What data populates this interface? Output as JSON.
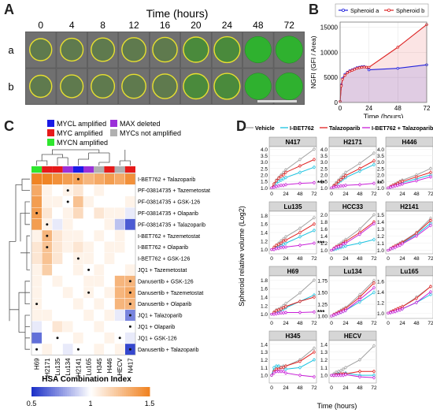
{
  "panel_labels": [
    "A",
    "B",
    "C",
    "D"
  ],
  "panelA": {
    "title": "Time (hours)",
    "times": [
      "0",
      "4",
      "8",
      "12",
      "16",
      "20",
      "24",
      "48",
      "72"
    ],
    "rows": [
      "a",
      "b"
    ]
  },
  "chart_data": [
    {
      "type": "line",
      "panel": "B",
      "xlabel": "Time (hours)",
      "ylabel": "NGFI (GFI / Area)",
      "xlim": [
        0,
        72
      ],
      "ylim": [
        0,
        16000
      ],
      "xticks": [
        "0",
        "24",
        "48",
        "72"
      ],
      "yticks": [
        "0",
        "5000",
        "10000",
        "15000"
      ],
      "legend": "top",
      "series": [
        {
          "name": "Spheroid a",
          "color": "#2222dd",
          "x": [
            0,
            1,
            2,
            4,
            6,
            8,
            10,
            12,
            14,
            16,
            18,
            20,
            22,
            24,
            48,
            72
          ],
          "y": [
            200,
            3500,
            4800,
            5600,
            6000,
            6300,
            6500,
            6700,
            6900,
            7000,
            7100,
            7150,
            7000,
            6500,
            6800,
            7500
          ]
        },
        {
          "name": "Spheroid b",
          "color": "#dd2222",
          "x": [
            0,
            1,
            2,
            4,
            6,
            8,
            10,
            12,
            14,
            16,
            18,
            20,
            22,
            24,
            48,
            72
          ],
          "y": [
            200,
            3300,
            4600,
            5400,
            5900,
            6200,
            6400,
            6600,
            6800,
            6900,
            7000,
            7050,
            7000,
            7000,
            11000,
            15500
          ]
        }
      ]
    },
    {
      "type": "heatmap",
      "panel": "C",
      "title": "HSA Combination Index",
      "scale_ticks": [
        "0.5",
        "1",
        "1.5"
      ],
      "legend_items": [
        {
          "label": "MYCL amplified",
          "color": "#1a1ae6"
        },
        {
          "label": "MYC amplified",
          "color": "#e61a1a"
        },
        {
          "label": "MYCN amplified",
          "color": "#2ee62e"
        },
        {
          "label": "MAX deleted",
          "color": "#9b30d9"
        },
        {
          "label": "MYCs not amplified",
          "color": "#b0b0b0"
        }
      ],
      "columns": [
        "H69",
        "H2171",
        "Lu135",
        "Lu134",
        "H2141",
        "Lu165",
        "H345",
        "H446",
        "HECV",
        "N417"
      ],
      "column_colors": [
        "#2ee62e",
        "#e61a1a",
        "#e61a1a",
        "#9b30d9",
        "#1a1ae6",
        "#9b30d9",
        "#b0b0b0",
        "#e61a1a",
        "#b0b0b0",
        "#e61a1a"
      ],
      "rows": [
        "I-BET762 + Talazoparib",
        "PF-03814735 + Tazemetostat",
        "PF-03814735 + GSK-126",
        "PF-03814735 + Olaparib",
        "PF-03814735 + Talazoparib",
        "I-BET762 + Tazemetostat",
        "I-BET762 + Olaparib",
        "I-BET762 + GSK-126",
        "JQ1 + Tazemetostat",
        "Danusertib + GSK-126",
        "Danusertib + Tazemetostat",
        "Danusertib + Olaparib",
        "JQ1 + Talazoparib",
        "JQ1 + Olaparib",
        "JQ1 + GSK-126",
        "Danusertib + Talazoparib"
      ],
      "values": [
        [
          1.5,
          1.5,
          1.45,
          1.4,
          1.38,
          1.3,
          1.35,
          1.4,
          1.35,
          1.45
        ],
        [
          1.35,
          1.05,
          1.0,
          1.05,
          1.1,
          1.0,
          1.05,
          1.0,
          1.0,
          1.0
        ],
        [
          1.4,
          1.05,
          1.05,
          1.0,
          1.25,
          1.05,
          1.0,
          1.0,
          1.0,
          1.05
        ],
        [
          1.4,
          1.1,
          1.0,
          1.05,
          1.15,
          1.0,
          1.1,
          1.05,
          1.05,
          0.95
        ],
        [
          1.4,
          1.05,
          0.95,
          1.05,
          1.0,
          1.0,
          1.0,
          1.05,
          0.85,
          0.6
        ],
        [
          1.05,
          1.3,
          1.1,
          1.05,
          1.05,
          1.0,
          1.05,
          1.0,
          1.05,
          1.0
        ],
        [
          1.1,
          1.25,
          1.1,
          1.05,
          1.1,
          1.05,
          1.0,
          1.05,
          1.05,
          1.0
        ],
        [
          1.1,
          1.25,
          1.1,
          1.0,
          1.05,
          1.05,
          1.0,
          1.05,
          1.0,
          1.0
        ],
        [
          1.05,
          1.2,
          1.0,
          1.0,
          1.05,
          1.0,
          1.05,
          1.0,
          1.0,
          1.05
        ],
        [
          1.05,
          1.0,
          1.05,
          1.0,
          1.0,
          1.05,
          1.05,
          1.0,
          1.3,
          1.3
        ],
        [
          1.05,
          1.0,
          1.0,
          1.05,
          1.0,
          1.05,
          1.0,
          1.05,
          1.3,
          1.35
        ],
        [
          1.05,
          1.0,
          1.0,
          1.0,
          1.05,
          1.0,
          1.05,
          1.0,
          1.3,
          1.3
        ],
        [
          1.05,
          1.05,
          1.0,
          1.0,
          1.0,
          1.05,
          1.0,
          1.05,
          0.95,
          0.7
        ],
        [
          0.95,
          1.0,
          1.1,
          1.05,
          1.0,
          1.0,
          1.05,
          1.0,
          1.0,
          1.0
        ],
        [
          0.65,
          1.0,
          1.0,
          1.0,
          1.05,
          1.0,
          1.0,
          1.05,
          1.0,
          0.95
        ],
        [
          1.0,
          1.05,
          1.0,
          0.95,
          1.0,
          1.0,
          1.05,
          1.0,
          1.05,
          0.55
        ]
      ],
      "dots": [
        [
          4,
          0
        ],
        [
          3,
          1
        ],
        [
          3,
          2
        ],
        [
          0,
          3
        ],
        [
          1,
          4
        ],
        [
          1,
          5
        ],
        [
          1,
          6
        ],
        [
          4,
          7
        ],
        [
          5,
          8
        ],
        [
          9,
          9
        ],
        [
          5,
          10
        ],
        [
          9,
          10
        ],
        [
          0,
          11
        ],
        [
          9,
          11
        ],
        [
          9,
          12
        ],
        [
          9,
          13
        ],
        [
          2,
          14
        ],
        [
          8,
          14
        ],
        [
          0,
          15
        ],
        [
          4,
          15
        ],
        [
          9,
          15
        ],
        [
          1,
          16
        ],
        [
          3,
          16
        ],
        [
          1,
          17
        ],
        [
          9,
          17
        ]
      ]
    },
    {
      "type": "line",
      "panel": "D",
      "ylabel": "Spheroid relative volume (Log2)",
      "xlabel": "Time (hours)",
      "xticks": [
        "0",
        "24",
        "48",
        "72"
      ],
      "legend": "top",
      "legend_series": [
        {
          "name": "Vehicle",
          "color": "#a0a0a0"
        },
        {
          "name": "I-BET762",
          "color": "#19c2e0"
        },
        {
          "name": "Talazoparib",
          "color": "#e02020"
        },
        {
          "name": "I-BET762 + Talazoparib",
          "color": "#c81ed8"
        }
      ],
      "x": [
        0,
        4,
        8,
        12,
        16,
        20,
        24,
        48,
        72
      ],
      "facets": [
        {
          "name": "N417",
          "yticks": [
            "1.0",
            "1.5",
            "2.0",
            "2.5",
            "3.0",
            "3.5",
            "4.0"
          ],
          "ylim": [
            0.9,
            4.2
          ],
          "sig": "***",
          "vehicle": [
            1,
            1.3,
            1.6,
            1.8,
            2.0,
            2.2,
            2.4,
            3.2,
            4.0
          ],
          "ibet": [
            1,
            1.2,
            1.35,
            1.5,
            1.6,
            1.7,
            1.8,
            2.2,
            2.6
          ],
          "tala": [
            1,
            1.3,
            1.55,
            1.75,
            1.9,
            2.0,
            2.2,
            2.7,
            3.2
          ],
          "combo": [
            1,
            1.05,
            1.1,
            1.15,
            1.2,
            1.2,
            1.25,
            1.35,
            1.4
          ]
        },
        {
          "name": "H2171",
          "yticks": [
            "1.0",
            "1.5",
            "2.0",
            "2.5",
            "3.0",
            "3.5",
            "4.0"
          ],
          "ylim": [
            0.9,
            4.2
          ],
          "sig": "**",
          "vehicle": [
            1,
            1.2,
            1.4,
            1.6,
            1.8,
            2.0,
            2.2,
            2.9,
            3.7
          ],
          "ibet": [
            1,
            1.1,
            1.25,
            1.4,
            1.55,
            1.7,
            1.8,
            2.3,
            2.8
          ],
          "tala": [
            1,
            1.15,
            1.3,
            1.5,
            1.65,
            1.8,
            1.95,
            2.5,
            3.1
          ],
          "combo": [
            1,
            1.05,
            1.1,
            1.1,
            1.15,
            1.15,
            1.2,
            1.25,
            1.35
          ]
        },
        {
          "name": "H446",
          "yticks": [
            "1.0",
            "1.5",
            "2.0",
            "2.5",
            "3.0",
            "3.5",
            "4.0"
          ],
          "ylim": [
            0.9,
            4.2
          ],
          "sig": "",
          "vehicle": [
            1,
            1.1,
            1.2,
            1.3,
            1.4,
            1.5,
            1.6,
            2.0,
            2.5
          ],
          "ibet": [
            1,
            1.05,
            1.15,
            1.2,
            1.3,
            1.35,
            1.4,
            1.7,
            2.0
          ],
          "tala": [
            1,
            1.1,
            1.2,
            1.25,
            1.35,
            1.45,
            1.5,
            1.85,
            2.2
          ],
          "combo": [
            1,
            1.05,
            1.1,
            1.15,
            1.2,
            1.25,
            1.3,
            1.55,
            1.85
          ]
        },
        {
          "name": "Lu135",
          "yticks": [
            "1.0",
            "1.2",
            "1.4",
            "1.6",
            "1.8"
          ],
          "ylim": [
            0.9,
            1.9
          ],
          "sig": "***",
          "vehicle": [
            1,
            1.05,
            1.1,
            1.15,
            1.2,
            1.25,
            1.3,
            1.5,
            1.75
          ],
          "ibet": [
            1,
            1.02,
            1.05,
            1.08,
            1.1,
            1.12,
            1.15,
            1.3,
            1.45
          ],
          "tala": [
            1,
            1.05,
            1.1,
            1.12,
            1.15,
            1.2,
            1.22,
            1.4,
            1.6
          ],
          "combo": [
            1,
            1.0,
            1.02,
            1.03,
            1.05,
            1.05,
            1.06,
            1.1,
            1.15
          ]
        },
        {
          "name": "HCC33",
          "yticks": [
            "1.0",
            "1.2",
            "1.4",
            "1.6",
            "1.8",
            "2.0"
          ],
          "ylim": [
            0.9,
            2.1
          ],
          "sig": "",
          "vehicle": [
            1,
            1.05,
            1.1,
            1.15,
            1.2,
            1.25,
            1.3,
            1.6,
            2.0
          ],
          "ibet": [
            1,
            1.02,
            1.04,
            1.06,
            1.08,
            1.1,
            1.12,
            1.2,
            1.3
          ],
          "tala": [
            1,
            1.05,
            1.1,
            1.12,
            1.15,
            1.2,
            1.25,
            1.5,
            1.8
          ],
          "combo": [
            1,
            1.04,
            1.08,
            1.1,
            1.12,
            1.18,
            1.2,
            1.45,
            1.75
          ]
        },
        {
          "name": "H2141",
          "yticks": [
            "1.0",
            "1.1",
            "1.2",
            "1.3",
            "1.4",
            "1.5"
          ],
          "ylim": [
            0.95,
            1.55
          ],
          "sig": "",
          "vehicle": [
            1,
            1.02,
            1.04,
            1.06,
            1.08,
            1.1,
            1.12,
            1.25,
            1.45
          ],
          "ibet": [
            1,
            1.02,
            1.03,
            1.05,
            1.07,
            1.08,
            1.1,
            1.22,
            1.38
          ],
          "tala": [
            1,
            1.02,
            1.04,
            1.06,
            1.07,
            1.09,
            1.11,
            1.24,
            1.42
          ],
          "combo": [
            1,
            1.02,
            1.03,
            1.04,
            1.06,
            1.07,
            1.09,
            1.2,
            1.35
          ]
        },
        {
          "name": "H69",
          "yticks": [
            "1.0",
            "1.2",
            "1.4",
            "1.6",
            "1.8"
          ],
          "ylim": [
            0.9,
            1.9
          ],
          "sig": "***",
          "vehicle": [
            1,
            1.05,
            1.1,
            1.12,
            1.15,
            1.2,
            1.25,
            1.5,
            1.8
          ],
          "ibet": [
            1,
            1.02,
            1.05,
            1.07,
            1.1,
            1.12,
            1.15,
            1.3,
            1.45
          ],
          "tala": [
            1,
            1.04,
            1.08,
            1.1,
            1.12,
            1.15,
            1.18,
            1.3,
            1.4
          ],
          "combo": [
            1,
            1.0,
            1.01,
            1.02,
            1.03,
            1.03,
            1.04,
            1.04,
            1.05
          ]
        },
        {
          "name": "Lu134",
          "yticks": [
            "1.00",
            "1.25",
            "1.50",
            "1.75"
          ],
          "ylim": [
            0.95,
            1.85
          ],
          "sig": "",
          "vehicle": [
            1,
            1.03,
            1.06,
            1.09,
            1.12,
            1.15,
            1.18,
            1.45,
            1.75
          ],
          "ibet": [
            1,
            1.02,
            1.04,
            1.06,
            1.08,
            1.1,
            1.12,
            1.3,
            1.5
          ],
          "tala": [
            1,
            1.03,
            1.05,
            1.08,
            1.1,
            1.13,
            1.16,
            1.4,
            1.7
          ],
          "combo": [
            1,
            1.02,
            1.04,
            1.06,
            1.08,
            1.1,
            1.12,
            1.35,
            1.6
          ]
        },
        {
          "name": "Lu165",
          "yticks": [
            "1.0",
            "1.2",
            "1.4",
            "1.6"
          ],
          "ylim": [
            0.9,
            1.7
          ],
          "sig": "",
          "vehicle": [
            1,
            1.02,
            1.04,
            1.06,
            1.08,
            1.1,
            1.12,
            1.3,
            1.5
          ],
          "ibet": [
            1,
            1.01,
            1.03,
            1.04,
            1.05,
            1.07,
            1.08,
            1.2,
            1.35
          ],
          "tala": [
            1,
            1.02,
            1.04,
            1.06,
            1.08,
            1.1,
            1.12,
            1.28,
            1.5
          ],
          "combo": [
            1,
            1.01,
            1.02,
            1.03,
            1.05,
            1.06,
            1.08,
            1.2,
            1.4
          ]
        },
        {
          "name": "H345",
          "yticks": [
            "1.0",
            "1.1",
            "1.2",
            "1.3",
            "1.4"
          ],
          "ylim": [
            0.9,
            1.45
          ],
          "sig": "",
          "vehicle": [
            1,
            1.05,
            1.08,
            1.1,
            1.1,
            1.12,
            1.12,
            1.2,
            1.35
          ],
          "ibet": [
            1,
            1.1,
            1.12,
            1.12,
            1.1,
            1.1,
            1.08,
            1.1,
            1.2
          ],
          "tala": [
            1,
            1.05,
            1.08,
            1.08,
            1.1,
            1.1,
            1.12,
            1.18,
            1.3
          ],
          "combo": [
            1,
            1.03,
            1.05,
            1.05,
            1.05,
            1.05,
            1.03,
            1.0,
            0.98
          ]
        },
        {
          "name": "HECV",
          "yticks": [
            "1.0",
            "1.1",
            "1.2",
            "1.3",
            "1.4"
          ],
          "ylim": [
            0.9,
            1.45
          ],
          "sig": "",
          "vehicle": [
            1,
            1.02,
            1.04,
            1.05,
            1.06,
            1.08,
            1.1,
            1.2,
            1.38
          ],
          "ibet": [
            1,
            1.0,
            1.01,
            1.02,
            1.02,
            1.02,
            1.03,
            1.0,
            1.0
          ],
          "tala": [
            1,
            1.0,
            1.01,
            1.01,
            1.02,
            1.02,
            1.02,
            1.05,
            1.05
          ],
          "combo": [
            1,
            1.0,
            1.0,
            1.0,
            1.0,
            1.0,
            1.01,
            0.98,
            0.97
          ]
        }
      ]
    }
  ]
}
